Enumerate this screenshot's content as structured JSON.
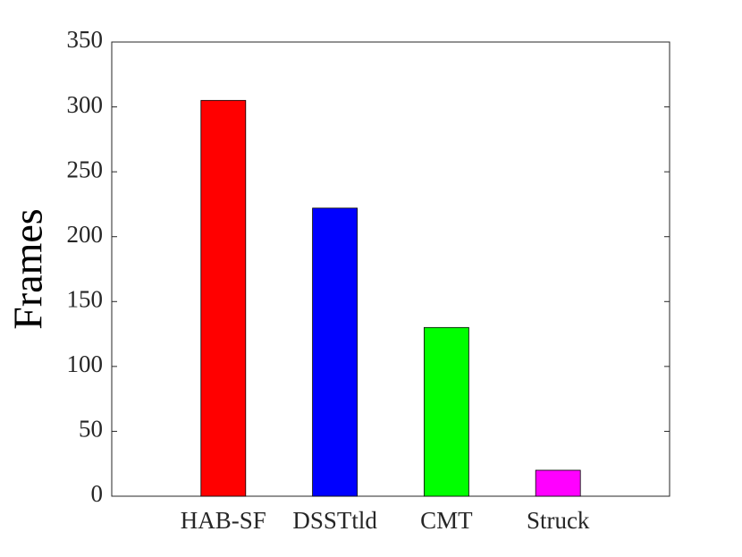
{
  "chart_data": {
    "type": "bar",
    "y_label": "Frames",
    "categories": [
      "HAB-SF",
      "DSSTtld",
      "CMT",
      "Struck"
    ],
    "values": [
      305,
      222,
      130,
      20
    ],
    "colors": [
      "#ff0000",
      "#0000ff",
      "#00ff00",
      "#ff00ff"
    ],
    "ylim": [
      0,
      350
    ],
    "yticks": [
      0,
      50,
      100,
      150,
      200,
      250,
      300,
      350
    ],
    "grid": false
  }
}
